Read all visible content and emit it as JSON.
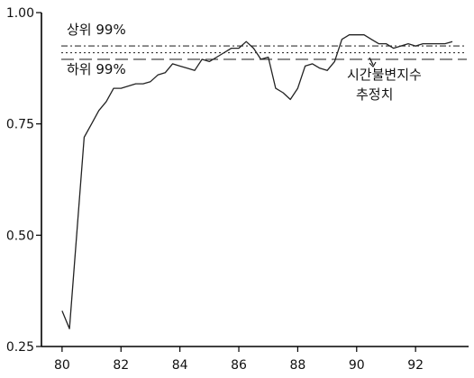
{
  "chart_data": {
    "type": "line",
    "title": "",
    "xlabel": "",
    "ylabel": "",
    "xlim": [
      79.3,
      93.8
    ],
    "ylim": [
      0.25,
      1.0
    ],
    "xticks": [
      80,
      82,
      84,
      86,
      88,
      90,
      92
    ],
    "xtick_labels": [
      "80",
      "82",
      "84",
      "86",
      "88",
      "90",
      "92"
    ],
    "yticks": [
      0.25,
      0.5,
      0.75,
      1.0
    ],
    "ytick_labels": [
      "0.25",
      "0.50",
      "0.75",
      "1.00"
    ],
    "grid": false,
    "series": [
      {
        "x": [
          80.0,
          80.25,
          80.75,
          81.0,
          81.25,
          81.5,
          81.75,
          82.0,
          82.25,
          82.5,
          82.75,
          83.0,
          83.25,
          83.5,
          83.75,
          84.0,
          84.25,
          84.5,
          84.75,
          85.0,
          85.25,
          85.5,
          85.75,
          86.0,
          86.25,
          86.5,
          86.75,
          87.0,
          87.25,
          87.5,
          87.75,
          88.0,
          88.25,
          88.5,
          88.75,
          89.0,
          89.25,
          89.5,
          89.75,
          90.0,
          90.25,
          90.5,
          90.75,
          91.0,
          91.25,
          91.5,
          91.75,
          92.0,
          92.25,
          92.5,
          92.75,
          93.0,
          93.25
        ],
        "values": [
          0.33,
          0.29,
          0.72,
          0.75,
          0.78,
          0.8,
          0.83,
          0.83,
          0.835,
          0.84,
          0.84,
          0.845,
          0.86,
          0.865,
          0.885,
          0.88,
          0.875,
          0.87,
          0.895,
          0.89,
          0.9,
          0.91,
          0.92,
          0.92,
          0.935,
          0.92,
          0.895,
          0.9,
          0.83,
          0.82,
          0.805,
          0.83,
          0.88,
          0.885,
          0.875,
          0.87,
          0.89,
          0.94,
          0.95,
          0.95,
          0.95,
          0.94,
          0.93,
          0.93,
          0.92,
          0.925,
          0.93,
          0.925,
          0.93,
          0.93,
          0.93,
          0.93,
          0.935
        ],
        "color": "#222222"
      }
    ],
    "reference_lines": [
      {
        "label": "상위 99%",
        "value": 0.925,
        "style": "dash-dot"
      },
      {
        "label": "시간불변지수 추정치",
        "value": 0.91,
        "style": "dotted"
      },
      {
        "label": "하위 99%",
        "value": 0.895,
        "style": "long-dash"
      }
    ],
    "annotations": {
      "upper_label": "상위 99%",
      "lower_label": "하위 99%",
      "estimate_label_line1": "시간불변지수",
      "estimate_label_line2": "추정치"
    }
  }
}
